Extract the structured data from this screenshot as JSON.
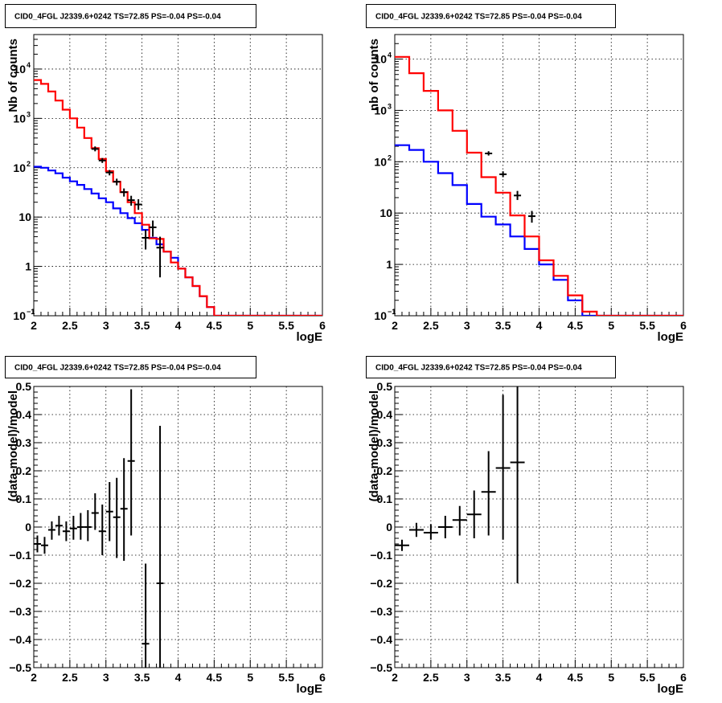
{
  "colors": {
    "total_model": "#ff0000",
    "background_model": "#0000ff",
    "data": "#000000"
  },
  "chart_data": [
    {
      "id": "counts-left",
      "type": "line",
      "log_y": true,
      "grid": true,
      "title": "CID0_4FGL J2339.6+0242 TS=72.85 PS=-0.04 PS=-0.04",
      "xlabel": "logE",
      "ylabel": "Nb of counts",
      "xlim": [
        2,
        6
      ],
      "ylim": [
        0.1,
        50000
      ],
      "x_ticks": [
        {
          "value": 2,
          "label": "2"
        },
        {
          "value": 2.5,
          "label": "2.5"
        },
        {
          "value": 3,
          "label": "3"
        },
        {
          "value": 3.5,
          "label": "3.5"
        },
        {
          "value": 4,
          "label": "4"
        },
        {
          "value": 4.5,
          "label": "4.5"
        },
        {
          "value": 5,
          "label": "5"
        },
        {
          "value": 5.5,
          "label": "5.5"
        },
        {
          "value": 6,
          "label": "6"
        }
      ],
      "y_ticks": [
        {
          "value": 0.1,
          "mantissa": "10",
          "exp": "−1"
        },
        {
          "value": 1,
          "mantissa": "1",
          "exp": ""
        },
        {
          "value": 10,
          "mantissa": "10",
          "exp": ""
        },
        {
          "value": 100,
          "mantissa": "10",
          "exp": "2"
        },
        {
          "value": 1000,
          "mantissa": "10",
          "exp": "3"
        },
        {
          "value": 10000,
          "mantissa": "10",
          "exp": "4"
        }
      ],
      "bin_edges": [
        2.0,
        2.1,
        2.2,
        2.3,
        2.4,
        2.5,
        2.6,
        2.7,
        2.8,
        2.9,
        3.0,
        3.1,
        3.2,
        3.3,
        3.4,
        3.5,
        3.6,
        3.7,
        3.8,
        3.9,
        4.0,
        4.1,
        4.2,
        4.3,
        4.4,
        4.5,
        4.6,
        4.7,
        4.8,
        4.9,
        5.0,
        5.1,
        5.2,
        5.3,
        5.4,
        5.5,
        5.6,
        5.7,
        5.8,
        5.9,
        6.0
      ],
      "series": [
        {
          "role": "total_model",
          "values": [
            6000,
            5000,
            3500,
            2300,
            1500,
            1000,
            650,
            400,
            250,
            150,
            85,
            52,
            32,
            20,
            12,
            7,
            3.7,
            3.6,
            2.0,
            1.2,
            0.9,
            0.6,
            0.4,
            0.25,
            0.15,
            0.1,
            0.1,
            0.1,
            0.1,
            0.1,
            0.1,
            0.1,
            0.1,
            0.1,
            0.1,
            0.1,
            0.1,
            0.1,
            0.1,
            0.1
          ]
        },
        {
          "role": "background_model",
          "values": [
            105,
            100,
            88,
            77,
            63,
            53,
            45,
            37,
            30,
            24,
            20,
            15,
            12,
            9.5,
            7.5,
            5.5,
            3.8,
            2.8,
            2.0,
            1.5,
            0.9,
            0.6,
            0.4,
            0.25,
            0.15,
            0.1,
            0.1,
            0.1,
            0.1,
            0.1,
            0.1,
            0.1,
            0.1,
            0.1,
            0.1,
            0.1,
            0.1,
            0.1,
            0.1,
            0.1
          ]
        }
      ],
      "points": [
        {
          "x": 2.85,
          "y": 240,
          "lo": 215,
          "hi": 270
        },
        {
          "x": 2.95,
          "y": 140,
          "lo": 125,
          "hi": 157
        },
        {
          "x": 3.05,
          "y": 80,
          "lo": 70,
          "hi": 90
        },
        {
          "x": 3.15,
          "y": 52,
          "lo": 44,
          "hi": 60
        },
        {
          "x": 3.25,
          "y": 32,
          "lo": 26,
          "hi": 38
        },
        {
          "x": 3.35,
          "y": 22,
          "lo": 17,
          "hi": 27
        },
        {
          "x": 3.45,
          "y": 18,
          "lo": 14,
          "hi": 23
        },
        {
          "x": 3.55,
          "y": 3.8,
          "lo": 2.2,
          "hi": 5.5
        },
        {
          "x": 3.65,
          "y": 6.2,
          "lo": 4,
          "hi": 8.5
        },
        {
          "x": 3.75,
          "y": 2.4,
          "lo": 0.6,
          "hi": 4.0
        }
      ]
    },
    {
      "id": "counts-right",
      "type": "line",
      "log_y": true,
      "grid": true,
      "title": "CID0_4FGL J2339.6+0242 TS=72.85 PS=-0.04 PS=-0.04",
      "xlabel": "logE",
      "ylabel": "nb of counts",
      "xlim": [
        2,
        6
      ],
      "ylim": [
        0.1,
        30000
      ],
      "x_ticks": [
        {
          "value": 2,
          "label": "2"
        },
        {
          "value": 2.5,
          "label": "2.5"
        },
        {
          "value": 3,
          "label": "3"
        },
        {
          "value": 3.5,
          "label": "3.5"
        },
        {
          "value": 4,
          "label": "4"
        },
        {
          "value": 4.5,
          "label": "4.5"
        },
        {
          "value": 5,
          "label": "5"
        },
        {
          "value": 5.5,
          "label": "5.5"
        },
        {
          "value": 6,
          "label": "6"
        }
      ],
      "y_ticks": [
        {
          "value": 0.1,
          "mantissa": "10",
          "exp": "−1"
        },
        {
          "value": 1,
          "mantissa": "1",
          "exp": ""
        },
        {
          "value": 10,
          "mantissa": "10",
          "exp": ""
        },
        {
          "value": 100,
          "mantissa": "10",
          "exp": "2"
        },
        {
          "value": 1000,
          "mantissa": "10",
          "exp": "3"
        },
        {
          "value": 10000,
          "mantissa": "10",
          "exp": "4"
        }
      ],
      "bin_edges": [
        2.0,
        2.2,
        2.4,
        2.6,
        2.8,
        3.0,
        3.2,
        3.4,
        3.6,
        3.8,
        4.0,
        4.2,
        4.4,
        4.6,
        4.8,
        5.0,
        5.2,
        5.4,
        5.6,
        5.8,
        6.0
      ],
      "series": [
        {
          "role": "total_model",
          "values": [
            11000,
            5300,
            2400,
            1000,
            400,
            150,
            50,
            25,
            9,
            3.5,
            1.2,
            0.6,
            0.25,
            0.12,
            0.1,
            0.1,
            0.1,
            0.1,
            0.1,
            0.1
          ]
        },
        {
          "role": "background_model",
          "values": [
            210,
            170,
            100,
            60,
            35,
            15,
            8.5,
            6,
            3.5,
            2,
            1,
            0.5,
            0.2,
            0.1,
            0.1,
            0.1,
            0.1,
            0.1,
            0.1,
            0.1
          ]
        }
      ],
      "points": [
        {
          "x": 3.3,
          "y": 145,
          "lo": 132,
          "hi": 160
        },
        {
          "x": 3.5,
          "y": 57,
          "lo": 50,
          "hi": 65
        },
        {
          "x": 3.7,
          "y": 22,
          "lo": 18,
          "hi": 27
        },
        {
          "x": 3.9,
          "y": 8.7,
          "lo": 6.5,
          "hi": 11
        }
      ]
    },
    {
      "id": "residual-left",
      "type": "scatter",
      "log_y": false,
      "grid": true,
      "title": "CID0_4FGL J2339.6+0242 TS=72.85 PS=-0.04 PS=-0.04",
      "xlabel": "logE",
      "ylabel": "(data-model)/model",
      "xlim": [
        2,
        6
      ],
      "ylim": [
        -0.5,
        0.5
      ],
      "x_ticks": [
        {
          "value": 2,
          "label": "2"
        },
        {
          "value": 2.5,
          "label": "2.5"
        },
        {
          "value": 3,
          "label": "3"
        },
        {
          "value": 3.5,
          "label": "3.5"
        },
        {
          "value": 4,
          "label": "4"
        },
        {
          "value": 4.5,
          "label": "4.5"
        },
        {
          "value": 5,
          "label": "5"
        },
        {
          "value": 5.5,
          "label": "5.5"
        },
        {
          "value": 6,
          "label": "6"
        }
      ],
      "y_ticks": [
        {
          "value": -0.5,
          "label": "−0.5"
        },
        {
          "value": -0.4,
          "label": "−0.4"
        },
        {
          "value": -0.3,
          "label": "−0.3"
        },
        {
          "value": -0.2,
          "label": "−0.2"
        },
        {
          "value": -0.1,
          "label": "−0.1"
        },
        {
          "value": 0,
          "label": "0"
        },
        {
          "value": 0.1,
          "label": "0.1"
        },
        {
          "value": 0.2,
          "label": "0.2"
        },
        {
          "value": 0.3,
          "label": "0.3"
        },
        {
          "value": 0.4,
          "label": "0.4"
        },
        {
          "value": 0.5,
          "label": "0.5"
        }
      ],
      "xerr": 0.05,
      "points": [
        {
          "x": 2.05,
          "y": -0.06,
          "lo": -0.09,
          "hi": -0.03
        },
        {
          "x": 2.15,
          "y": -0.065,
          "lo": -0.095,
          "hi": -0.035
        },
        {
          "x": 2.25,
          "y": -0.01,
          "lo": -0.045,
          "hi": 0.02
        },
        {
          "x": 2.35,
          "y": 0.005,
          "lo": -0.03,
          "hi": 0.04
        },
        {
          "x": 2.45,
          "y": -0.015,
          "lo": -0.05,
          "hi": 0.02
        },
        {
          "x": 2.55,
          "y": -0.005,
          "lo": -0.045,
          "hi": 0.04
        },
        {
          "x": 2.65,
          "y": 0.0,
          "lo": -0.045,
          "hi": 0.05
        },
        {
          "x": 2.75,
          "y": 0.0,
          "lo": -0.05,
          "hi": 0.06
        },
        {
          "x": 2.85,
          "y": 0.05,
          "lo": -0.01,
          "hi": 0.12
        },
        {
          "x": 2.95,
          "y": -0.015,
          "lo": -0.1,
          "hi": 0.08
        },
        {
          "x": 3.05,
          "y": 0.055,
          "lo": -0.05,
          "hi": 0.16
        },
        {
          "x": 3.15,
          "y": 0.035,
          "lo": -0.11,
          "hi": 0.175
        },
        {
          "x": 3.25,
          "y": 0.065,
          "lo": -0.12,
          "hi": 0.245
        },
        {
          "x": 3.35,
          "y": 0.235,
          "lo": -0.03,
          "hi": 0.49
        },
        {
          "x": 3.55,
          "y": -0.415,
          "lo": -0.5,
          "hi": -0.13
        },
        {
          "x": 3.75,
          "y": -0.2,
          "lo": -0.5,
          "hi": 0.36
        }
      ]
    },
    {
      "id": "residual-right",
      "type": "scatter",
      "log_y": false,
      "grid": true,
      "title": "CID0_4FGL J2339.6+0242 TS=72.85 PS=-0.04 PS=-0.04",
      "xlabel": "logE",
      "ylabel": "(data-model)/model",
      "xlim": [
        2,
        6
      ],
      "ylim": [
        -0.5,
        0.5
      ],
      "x_ticks": [
        {
          "value": 2,
          "label": "2"
        },
        {
          "value": 2.5,
          "label": "2.5"
        },
        {
          "value": 3,
          "label": "3"
        },
        {
          "value": 3.5,
          "label": "3.5"
        },
        {
          "value": 4,
          "label": "4"
        },
        {
          "value": 4.5,
          "label": "4.5"
        },
        {
          "value": 5,
          "label": "5"
        },
        {
          "value": 5.5,
          "label": "5.5"
        },
        {
          "value": 6,
          "label": "6"
        }
      ],
      "y_ticks": [
        {
          "value": -0.5,
          "label": "−0.5"
        },
        {
          "value": -0.4,
          "label": "−0.4"
        },
        {
          "value": -0.3,
          "label": "−0.3"
        },
        {
          "value": -0.2,
          "label": "−0.2"
        },
        {
          "value": -0.1,
          "label": "−0.1"
        },
        {
          "value": 0,
          "label": "0"
        },
        {
          "value": 0.1,
          "label": "0.1"
        },
        {
          "value": 0.2,
          "label": "0.2"
        },
        {
          "value": 0.3,
          "label": "0.3"
        },
        {
          "value": 0.4,
          "label": "0.4"
        },
        {
          "value": 0.5,
          "label": "0.5"
        }
      ],
      "xerr": 0.1,
      "points": [
        {
          "x": 2.1,
          "y": -0.065,
          "lo": -0.085,
          "hi": -0.045
        },
        {
          "x": 2.3,
          "y": -0.01,
          "lo": -0.035,
          "hi": 0.015
        },
        {
          "x": 2.5,
          "y": -0.02,
          "lo": -0.045,
          "hi": 0.01
        },
        {
          "x": 2.7,
          "y": 0.0,
          "lo": -0.04,
          "hi": 0.04
        },
        {
          "x": 2.9,
          "y": 0.025,
          "lo": -0.03,
          "hi": 0.075
        },
        {
          "x": 3.1,
          "y": 0.045,
          "lo": -0.04,
          "hi": 0.13
        },
        {
          "x": 3.3,
          "y": 0.125,
          "lo": -0.03,
          "hi": 0.27
        },
        {
          "x": 3.5,
          "y": 0.21,
          "lo": -0.045,
          "hi": 0.47
        },
        {
          "x": 3.7,
          "y": 0.23,
          "lo": -0.2,
          "hi": 0.5
        }
      ]
    }
  ]
}
